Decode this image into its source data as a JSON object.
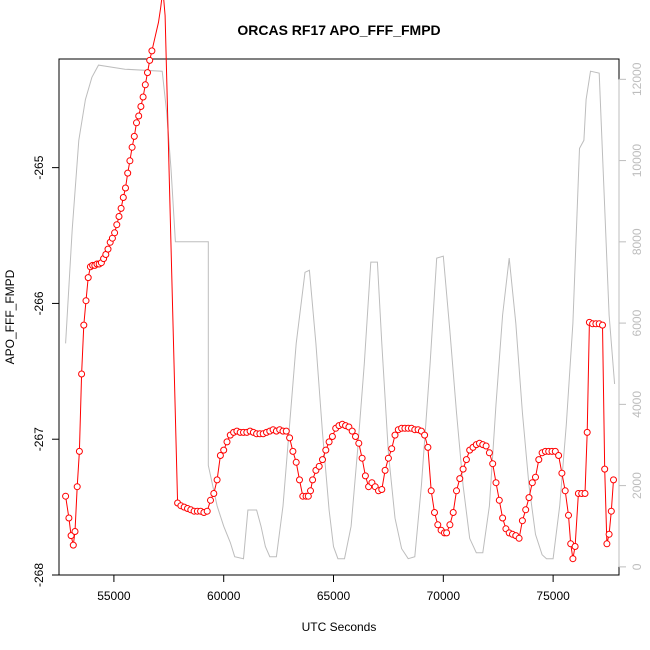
{
  "chart_data": {
    "type": "line",
    "title": "ORCAS RF17 APO_FFF_FMPD",
    "xlabel": "UTC Seconds",
    "ylabel": "APO_FFF_FMPD",
    "xlim": [
      52500,
      78000
    ],
    "ylim": [
      -268,
      -264.2
    ],
    "y2lim": [
      -200,
      12500
    ],
    "x_ticks": [
      55000,
      60000,
      65000,
      70000,
      75000
    ],
    "x_tick_labels": [
      "55000",
      "60000",
      "65000",
      "70000",
      "75000"
    ],
    "y_ticks": [
      -268,
      -267,
      -266,
      -265
    ],
    "y_tick_labels": [
      "-268",
      "-267",
      "-266",
      "-265"
    ],
    "y2_ticks": [
      0,
      2000,
      4000,
      6000,
      8000,
      10000,
      12000
    ],
    "y2_tick_labels": [
      "0",
      "2000",
      "4000",
      "6000",
      "8000",
      "10000",
      "12000"
    ],
    "colors": {
      "series_main": "#ff0000",
      "series_secondary": "#bdbdbd",
      "frame": "#000000",
      "right_axis": "#bdbdbd"
    },
    "series": [
      {
        "axis": "left",
        "style": "line+points",
        "points": [
          [
            52800,
            -267.42
          ],
          [
            52950,
            -267.58
          ],
          [
            53050,
            -267.71
          ],
          [
            53150,
            -267.78
          ],
          [
            53230,
            -267.68
          ],
          [
            53330,
            -267.35
          ],
          [
            53430,
            -267.09
          ],
          [
            53530,
            -266.52
          ],
          [
            53630,
            -266.16
          ],
          [
            53730,
            -265.98
          ],
          [
            53830,
            -265.81
          ],
          [
            53930,
            -265.73
          ],
          [
            54030,
            -265.72
          ],
          [
            54130,
            -265.72
          ],
          [
            54230,
            -265.71
          ],
          [
            54330,
            -265.71
          ],
          [
            54430,
            -265.7
          ],
          [
            54530,
            -265.67
          ],
          [
            54630,
            -265.64
          ],
          [
            54730,
            -265.6
          ],
          [
            54830,
            -265.55
          ],
          [
            54930,
            -265.52
          ],
          [
            55030,
            -265.48
          ],
          [
            55130,
            -265.42
          ],
          [
            55230,
            -265.36
          ],
          [
            55330,
            -265.3
          ],
          [
            55430,
            -265.22
          ],
          [
            55530,
            -265.15
          ],
          [
            55630,
            -265.04
          ],
          [
            55730,
            -264.95
          ],
          [
            55830,
            -264.85
          ],
          [
            55930,
            -264.77
          ],
          [
            56030,
            -264.67
          ],
          [
            56130,
            -264.62
          ],
          [
            56230,
            -264.55
          ],
          [
            56330,
            -264.48
          ],
          [
            56430,
            -264.39
          ],
          [
            56530,
            -264.3
          ],
          [
            56630,
            -264.21
          ],
          [
            56730,
            -264.14
          ],
          [
            56830,
            -264.07
          ],
          [
            56930,
            -264.0
          ],
          [
            57030,
            -263.93
          ],
          [
            57130,
            -263.82
          ],
          [
            57230,
            -263.69
          ],
          [
            57330,
            -263.88
          ],
          [
            57900,
            -267.47
          ],
          [
            58050,
            -267.49
          ],
          [
            58200,
            -267.5
          ],
          [
            58350,
            -267.51
          ],
          [
            58500,
            -267.52
          ],
          [
            58650,
            -267.53
          ],
          [
            58800,
            -267.53
          ],
          [
            58950,
            -267.53
          ],
          [
            59100,
            -267.54
          ],
          [
            59250,
            -267.53
          ],
          [
            59400,
            -267.45
          ],
          [
            59550,
            -267.4
          ],
          [
            59700,
            -267.3
          ],
          [
            59850,
            -267.12
          ],
          [
            60000,
            -267.08
          ],
          [
            60150,
            -267.02
          ],
          [
            60300,
            -266.97
          ],
          [
            60450,
            -266.95
          ],
          [
            60600,
            -266.94
          ],
          [
            60750,
            -266.95
          ],
          [
            60900,
            -266.95
          ],
          [
            61050,
            -266.95
          ],
          [
            61200,
            -266.94
          ],
          [
            61350,
            -266.95
          ],
          [
            61500,
            -266.96
          ],
          [
            61650,
            -266.96
          ],
          [
            61800,
            -266.96
          ],
          [
            61950,
            -266.95
          ],
          [
            62100,
            -266.94
          ],
          [
            62250,
            -266.93
          ],
          [
            62400,
            -266.94
          ],
          [
            62550,
            -266.93
          ],
          [
            62700,
            -266.94
          ],
          [
            62850,
            -266.94
          ],
          [
            63000,
            -266.99
          ],
          [
            63150,
            -267.09
          ],
          [
            63300,
            -267.17
          ],
          [
            63450,
            -267.3
          ],
          [
            63600,
            -267.42
          ],
          [
            63750,
            -267.42
          ],
          [
            63850,
            -267.42
          ],
          [
            63950,
            -267.38
          ],
          [
            64050,
            -267.3
          ],
          [
            64200,
            -267.23
          ],
          [
            64350,
            -267.2
          ],
          [
            64500,
            -267.15
          ],
          [
            64650,
            -267.08
          ],
          [
            64800,
            -267.02
          ],
          [
            64950,
            -266.98
          ],
          [
            65100,
            -266.92
          ],
          [
            65250,
            -266.9
          ],
          [
            65400,
            -266.89
          ],
          [
            65550,
            -266.9
          ],
          [
            65700,
            -266.91
          ],
          [
            65850,
            -266.94
          ],
          [
            66000,
            -266.98
          ],
          [
            66150,
            -267.03
          ],
          [
            66300,
            -267.14
          ],
          [
            66450,
            -267.27
          ],
          [
            66600,
            -267.35
          ],
          [
            66750,
            -267.32
          ],
          [
            66900,
            -267.35
          ],
          [
            67050,
            -267.38
          ],
          [
            67200,
            -267.37
          ],
          [
            67350,
            -267.23
          ],
          [
            67500,
            -267.14
          ],
          [
            67650,
            -267.07
          ],
          [
            67800,
            -266.97
          ],
          [
            67950,
            -266.93
          ],
          [
            68100,
            -266.92
          ],
          [
            68250,
            -266.92
          ],
          [
            68400,
            -266.92
          ],
          [
            68550,
            -266.92
          ],
          [
            68700,
            -266.93
          ],
          [
            68850,
            -266.93
          ],
          [
            69000,
            -266.94
          ],
          [
            69150,
            -266.97
          ],
          [
            69300,
            -267.06
          ],
          [
            69450,
            -267.38
          ],
          [
            69600,
            -267.54
          ],
          [
            69750,
            -267.63
          ],
          [
            69900,
            -267.67
          ],
          [
            70050,
            -267.69
          ],
          [
            70150,
            -267.69
          ],
          [
            70300,
            -267.63
          ],
          [
            70450,
            -267.54
          ],
          [
            70600,
            -267.38
          ],
          [
            70750,
            -267.29
          ],
          [
            70900,
            -267.22
          ],
          [
            71050,
            -267.15
          ],
          [
            71200,
            -267.08
          ],
          [
            71350,
            -267.06
          ],
          [
            71500,
            -267.04
          ],
          [
            71650,
            -267.03
          ],
          [
            71800,
            -267.04
          ],
          [
            71950,
            -267.05
          ],
          [
            72100,
            -267.1
          ],
          [
            72250,
            -267.18
          ],
          [
            72400,
            -267.32
          ],
          [
            72550,
            -267.45
          ],
          [
            72700,
            -267.58
          ],
          [
            72850,
            -267.66
          ],
          [
            73000,
            -267.69
          ],
          [
            73150,
            -267.7
          ],
          [
            73300,
            -267.71
          ],
          [
            73450,
            -267.73
          ],
          [
            73600,
            -267.6
          ],
          [
            73750,
            -267.52
          ],
          [
            73900,
            -267.43
          ],
          [
            74050,
            -267.32
          ],
          [
            74200,
            -267.28
          ],
          [
            74350,
            -267.15
          ],
          [
            74500,
            -267.1
          ],
          [
            74650,
            -267.09
          ],
          [
            74800,
            -267.09
          ],
          [
            74950,
            -267.09
          ],
          [
            75100,
            -267.09
          ],
          [
            75250,
            -267.12
          ],
          [
            75400,
            -267.25
          ],
          [
            75550,
            -267.38
          ],
          [
            75700,
            -267.56
          ],
          [
            75800,
            -267.77
          ],
          [
            75900,
            -267.88
          ],
          [
            76000,
            -267.79
          ],
          [
            76150,
            -267.4
          ],
          [
            76300,
            -267.4
          ],
          [
            76450,
            -267.4
          ],
          [
            76550,
            -266.95
          ],
          [
            76650,
            -266.14
          ],
          [
            76800,
            -266.15
          ],
          [
            76950,
            -266.15
          ],
          [
            77100,
            -266.15
          ],
          [
            77250,
            -266.16
          ],
          [
            77350,
            -267.22
          ],
          [
            77450,
            -267.77
          ],
          [
            77550,
            -267.7
          ],
          [
            77650,
            -267.53
          ],
          [
            77750,
            -267.3
          ]
        ]
      },
      {
        "axis": "right",
        "style": "line",
        "points": [
          [
            52800,
            5500
          ],
          [
            53100,
            8300
          ],
          [
            53400,
            10500
          ],
          [
            53700,
            11500
          ],
          [
            54000,
            12050
          ],
          [
            54300,
            12350
          ],
          [
            55500,
            12250
          ],
          [
            57200,
            12200
          ],
          [
            57400,
            11200
          ],
          [
            57600,
            9800
          ],
          [
            57800,
            8000
          ],
          [
            58000,
            8000
          ],
          [
            58300,
            8000
          ],
          [
            59000,
            8000
          ],
          [
            59300,
            8000
          ],
          [
            59300,
            2500
          ],
          [
            59700,
            1500
          ],
          [
            60000,
            1000
          ],
          [
            60300,
            600
          ],
          [
            60500,
            250
          ],
          [
            60900,
            200
          ],
          [
            61100,
            1400
          ],
          [
            61500,
            1400
          ],
          [
            61700,
            1000
          ],
          [
            61900,
            500
          ],
          [
            62100,
            250
          ],
          [
            62400,
            250
          ],
          [
            62700,
            1500
          ],
          [
            63000,
            3500
          ],
          [
            63300,
            5500
          ],
          [
            63700,
            7250
          ],
          [
            63900,
            7300
          ],
          [
            64200,
            5500
          ],
          [
            64500,
            3300
          ],
          [
            64800,
            1400
          ],
          [
            65000,
            500
          ],
          [
            65200,
            200
          ],
          [
            65500,
            200
          ],
          [
            65800,
            1000
          ],
          [
            66100,
            2900
          ],
          [
            66400,
            5000
          ],
          [
            66700,
            7500
          ],
          [
            67000,
            7500
          ],
          [
            67200,
            5500
          ],
          [
            67500,
            2800
          ],
          [
            67800,
            1200
          ],
          [
            68100,
            450
          ],
          [
            68400,
            200
          ],
          [
            68700,
            250
          ],
          [
            69000,
            2000
          ],
          [
            69400,
            5000
          ],
          [
            69700,
            7600
          ],
          [
            70000,
            7650
          ],
          [
            70300,
            5800
          ],
          [
            70600,
            3800
          ],
          [
            70900,
            2000
          ],
          [
            71200,
            700
          ],
          [
            71500,
            350
          ],
          [
            71800,
            350
          ],
          [
            72100,
            1500
          ],
          [
            72400,
            4000
          ],
          [
            72700,
            6200
          ],
          [
            73000,
            7600
          ],
          [
            73300,
            6000
          ],
          [
            73600,
            3800
          ],
          [
            73900,
            2000
          ],
          [
            74200,
            800
          ],
          [
            74500,
            300
          ],
          [
            74700,
            200
          ],
          [
            75000,
            200
          ],
          [
            75300,
            1500
          ],
          [
            75600,
            3500
          ],
          [
            75900,
            6000
          ],
          [
            76200,
            10300
          ],
          [
            76400,
            10500
          ],
          [
            76500,
            11500
          ],
          [
            76700,
            12200
          ],
          [
            77100,
            12150
          ],
          [
            77300,
            9500
          ],
          [
            77550,
            6200
          ],
          [
            77800,
            4500
          ]
        ]
      }
    ]
  }
}
